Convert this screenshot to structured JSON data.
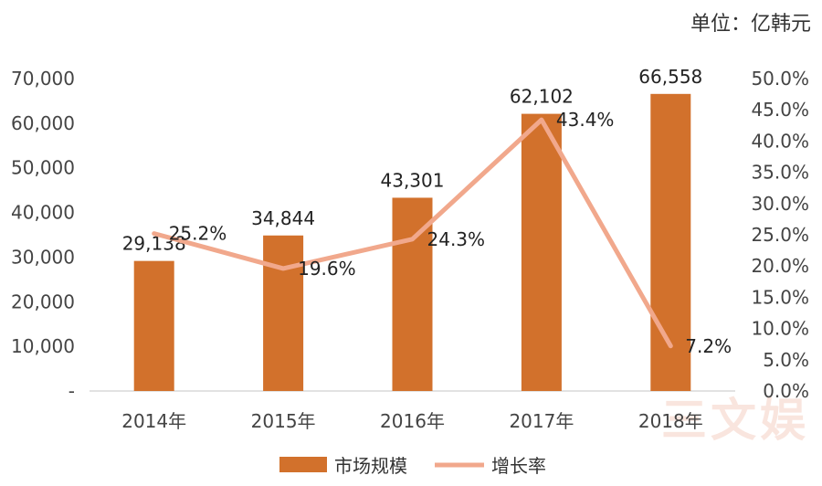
{
  "unit_label": "单位：亿韩元",
  "chart_data": {
    "type": "bar",
    "categories": [
      "2014年",
      "2015年",
      "2016年",
      "2017年",
      "2018年"
    ],
    "series": [
      {
        "name": "市场规模",
        "kind": "bar",
        "axis": "left",
        "values": [
          29138,
          34844,
          43301,
          62102,
          66558
        ],
        "labels": [
          "29,138",
          "34,844",
          "43,301",
          "62,102",
          "66,558"
        ]
      },
      {
        "name": "增长率",
        "kind": "line",
        "axis": "right",
        "values": [
          25.2,
          19.6,
          24.3,
          43.4,
          7.2
        ],
        "labels": [
          "25.2%",
          "19.6%",
          "24.3%",
          "43.4%",
          "7.2%"
        ]
      }
    ],
    "y_left": {
      "min": 0,
      "max": 70000,
      "ticks": [
        "-",
        "10,000",
        "20,000",
        "30,000",
        "40,000",
        "50,000",
        "60,000",
        "70,000"
      ]
    },
    "y_right": {
      "min": 0,
      "max": 50,
      "ticks": [
        "0.0%",
        "5.0%",
        "10.0%",
        "15.0%",
        "20.0%",
        "25.0%",
        "30.0%",
        "35.0%",
        "40.0%",
        "45.0%",
        "50.0%"
      ]
    },
    "legend_position": "bottom",
    "grid": false
  },
  "colors": {
    "bar": "#d2712c",
    "line": "#f1a88c",
    "axis": "#d9d9d9"
  },
  "watermark": "三文娱"
}
